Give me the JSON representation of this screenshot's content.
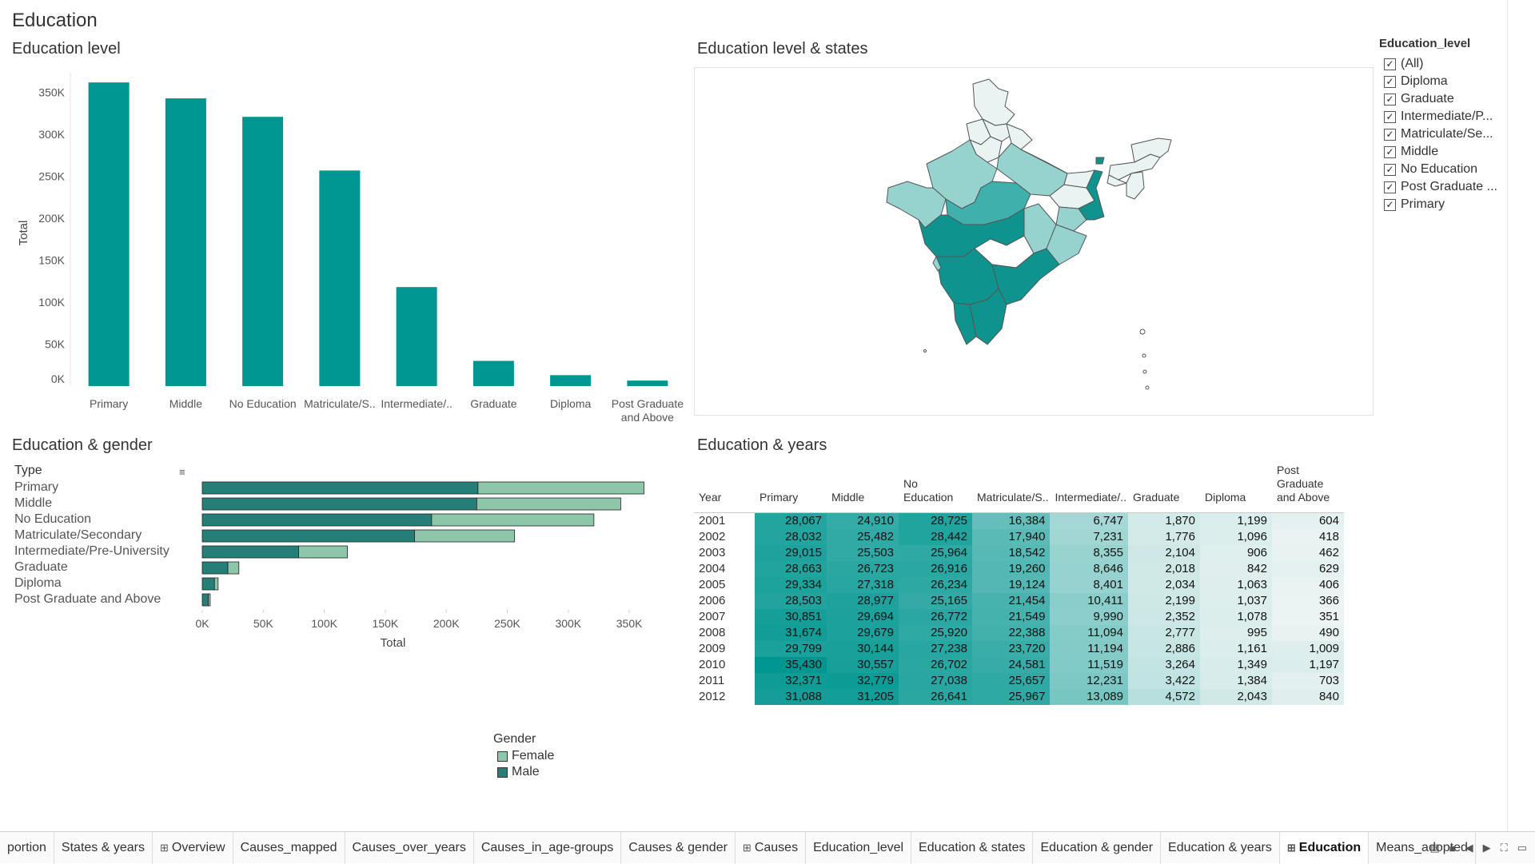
{
  "dashboard": {
    "title": "Education"
  },
  "sheets": {
    "level": "Education level",
    "map": "Education level & states",
    "gender": "Education & gender",
    "years": "Education & years"
  },
  "filter": {
    "title": "Education_level",
    "items": [
      "(All)",
      "Diploma",
      "Graduate",
      "Intermediate/P...",
      "Matriculate/Se...",
      "Middle",
      "No Education",
      "Post Graduate ...",
      "Primary"
    ]
  },
  "colors": {
    "bar": "#009690",
    "male": "#257f78",
    "female": "#8ec6a9",
    "map_dark": "#0e938e",
    "map_mid": "#3fb0ab",
    "map_light": "#96d3cf",
    "map_pale": "#e9f3f2"
  },
  "chart_data": [
    {
      "type": "bar",
      "title": "Education level",
      "categories": [
        "Primary",
        "Middle",
        "No Education",
        "Matriculate/S..",
        "Intermediate/..",
        "Graduate",
        "Diploma",
        "Post Graduate and Above"
      ],
      "values": [
        362000,
        343000,
        321000,
        257000,
        118000,
        30000,
        13000,
        6500
      ],
      "ylabel": "Total",
      "xlabel": "",
      "ylim": [
        0,
        365000
      ],
      "yticks": [
        "0K",
        "50K",
        "100K",
        "150K",
        "200K",
        "250K",
        "300K",
        "350K"
      ]
    },
    {
      "type": "bar",
      "orientation": "horizontal",
      "stacked": true,
      "title": "Education & gender",
      "row_header": "Type",
      "categories": [
        "Primary",
        "Middle",
        "No Education",
        "Matriculate/Secondary",
        "Intermediate/Pre-University",
        "Graduate",
        "Diploma",
        "Post Graduate and Above"
      ],
      "series": [
        {
          "name": "Male",
          "values": [
            226000,
            225000,
            188000,
            174000,
            79000,
            21000,
            10000,
            5000
          ]
        },
        {
          "name": "Female",
          "values": [
            136000,
            118000,
            133000,
            82000,
            40000,
            9000,
            3000,
            1500
          ]
        }
      ],
      "xlabel": "Total",
      "xlim": [
        0,
        365000
      ],
      "xticks": [
        "0K",
        "50K",
        "100K",
        "150K",
        "200K",
        "250K",
        "300K",
        "350K"
      ],
      "legend": {
        "title": "Gender",
        "items": [
          "Female",
          "Male"
        ],
        "position": "bottom"
      }
    },
    {
      "type": "table",
      "title": "Education & years",
      "columns": [
        "Year",
        "Primary",
        "Middle",
        "No Education",
        "Matriculate/S..",
        "Intermediate/..",
        "Graduate",
        "Diploma",
        "Post Graduate and Above"
      ],
      "rows": [
        [
          "2001",
          "28,067",
          "24,910",
          "28,725",
          "16,384",
          "6,747",
          "1,870",
          "1,199",
          "604"
        ],
        [
          "2002",
          "28,032",
          "25,482",
          "28,442",
          "17,940",
          "7,231",
          "1,776",
          "1,096",
          "418"
        ],
        [
          "2003",
          "29,015",
          "25,503",
          "25,964",
          "18,542",
          "8,355",
          "2,104",
          "906",
          "462"
        ],
        [
          "2004",
          "28,663",
          "26,723",
          "26,916",
          "19,260",
          "8,646",
          "2,018",
          "842",
          "629"
        ],
        [
          "2005",
          "29,334",
          "27,318",
          "26,234",
          "19,124",
          "8,401",
          "2,034",
          "1,063",
          "406"
        ],
        [
          "2006",
          "28,503",
          "28,977",
          "25,165",
          "21,454",
          "10,411",
          "2,199",
          "1,037",
          "366"
        ],
        [
          "2007",
          "30,851",
          "29,694",
          "26,772",
          "21,549",
          "9,990",
          "2,352",
          "1,078",
          "351"
        ],
        [
          "2008",
          "31,674",
          "29,679",
          "25,920",
          "22,388",
          "11,094",
          "2,777",
          "995",
          "490"
        ],
        [
          "2009",
          "29,799",
          "30,144",
          "27,238",
          "23,720",
          "11,194",
          "2,886",
          "1,161",
          "1,009"
        ],
        [
          "2010",
          "35,430",
          "30,557",
          "26,702",
          "24,581",
          "11,519",
          "3,264",
          "1,349",
          "1,197"
        ],
        [
          "2011",
          "32,371",
          "32,779",
          "27,038",
          "25,657",
          "12,231",
          "3,422",
          "1,384",
          "703"
        ],
        [
          "2012",
          "31,088",
          "31,205",
          "26,641",
          "25,967",
          "13,089",
          "4,572",
          "2,043",
          "840"
        ]
      ]
    }
  ],
  "tabs": [
    {
      "label": "portion",
      "grid": false
    },
    {
      "label": "States & years",
      "grid": false
    },
    {
      "label": "Overview",
      "grid": true
    },
    {
      "label": "Causes_mapped",
      "grid": false
    },
    {
      "label": "Causes_over_years",
      "grid": false
    },
    {
      "label": "Causes_in_age-groups",
      "grid": false
    },
    {
      "label": "Causes & gender",
      "grid": false
    },
    {
      "label": "Causes",
      "grid": true
    },
    {
      "label": "Education_level",
      "grid": false
    },
    {
      "label": "Education & states",
      "grid": false
    },
    {
      "label": "Education & gender",
      "grid": false
    },
    {
      "label": "Education & years",
      "grid": false
    },
    {
      "label": "Education",
      "grid": true,
      "active": true
    },
    {
      "label": "Means_adopted",
      "grid": false
    }
  ]
}
